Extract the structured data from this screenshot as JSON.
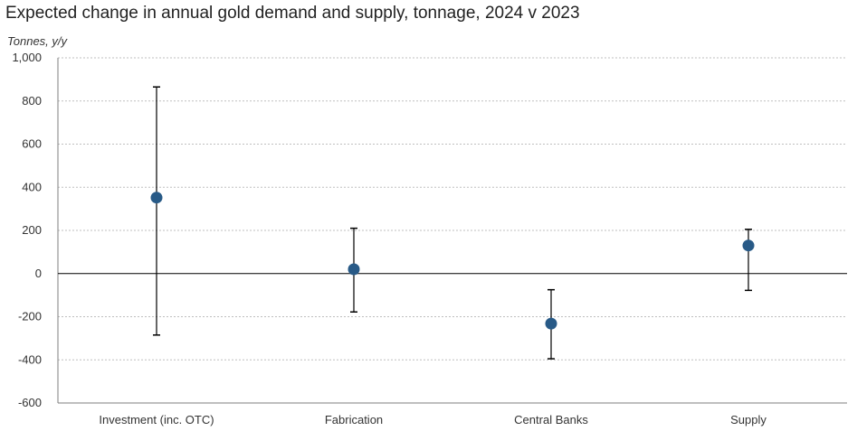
{
  "chart_data": {
    "type": "scatter",
    "title": "Expected change in annual gold demand and supply, tonnage, 2024 v 2023",
    "ylabel": "Tonnes, y/y",
    "xlabel": "",
    "ylim": [
      -600,
      1000
    ],
    "yticks": [
      1000,
      800,
      600,
      400,
      200,
      0,
      -200,
      -400,
      -600
    ],
    "ytick_labels": [
      "1,000",
      "800",
      "600",
      "400",
      "200",
      "0",
      "-200",
      "-400",
      "-600"
    ],
    "categories": [
      "Investment (inc. OTC)",
      "Fabrication",
      "Central Banks",
      "Supply"
    ],
    "values": [
      352,
      20,
      -232,
      130
    ],
    "error_high": [
      865,
      210,
      -75,
      205
    ],
    "error_low": [
      -285,
      -178,
      -395,
      -78
    ],
    "grid": true,
    "zero_line": true,
    "colors": {
      "marker": "#285a87",
      "error_bar": "#000000",
      "grid": "#bfbfbf",
      "axis": "#7f7f7f"
    }
  }
}
